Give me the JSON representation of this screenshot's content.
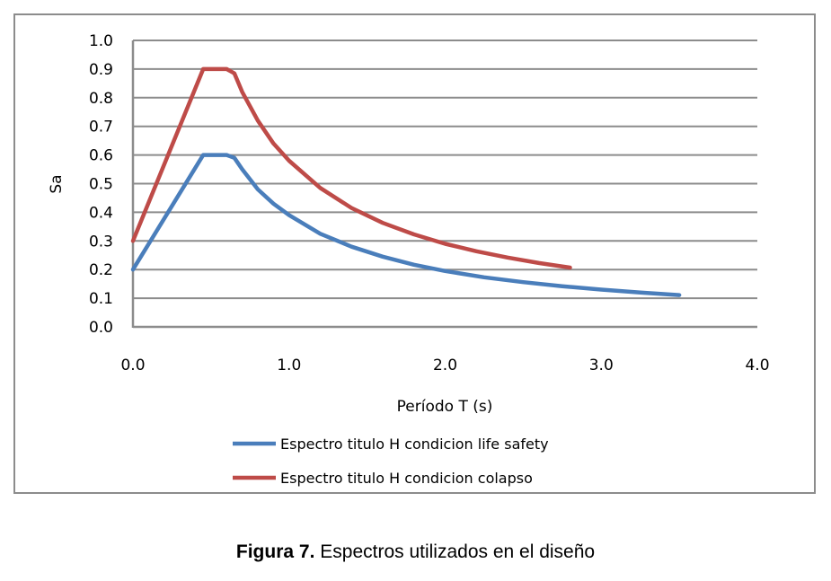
{
  "chart_data": {
    "type": "line",
    "title": "",
    "xlabel": "Período T (s)",
    "ylabel": "Sa",
    "xlim": [
      0,
      4
    ],
    "ylim": [
      0,
      1
    ],
    "x_ticks": [
      "0.0",
      "1.0",
      "2.0",
      "3.0",
      "4.0"
    ],
    "y_ticks": [
      "0.0",
      "0.1",
      "0.2",
      "0.3",
      "0.4",
      "0.5",
      "0.6",
      "0.7",
      "0.8",
      "0.9",
      "1.0"
    ],
    "grid": "horizontal",
    "legend_position": "bottom",
    "series": [
      {
        "name": "Espectro titulo H condicion life safety",
        "color": "#4a7ebb",
        "x": [
          0,
          0.45,
          0.6,
          0.65,
          0.7,
          0.8,
          0.9,
          1.0,
          1.2,
          1.4,
          1.6,
          1.8,
          2.0,
          2.25,
          2.5,
          2.75,
          3.0,
          3.25,
          3.5
        ],
        "y": [
          0.2,
          0.6,
          0.6,
          0.59,
          0.55,
          0.48,
          0.43,
          0.39,
          0.325,
          0.28,
          0.245,
          0.217,
          0.195,
          0.173,
          0.156,
          0.142,
          0.13,
          0.12,
          0.111
        ]
      },
      {
        "name": "Espectro titulo H condicion colapso",
        "color": "#be4b48",
        "x": [
          0,
          0.45,
          0.6,
          0.65,
          0.7,
          0.8,
          0.9,
          1.0,
          1.2,
          1.4,
          1.6,
          1.8,
          2.0,
          2.2,
          2.4,
          2.6,
          2.8
        ],
        "y": [
          0.3,
          0.9,
          0.9,
          0.885,
          0.82,
          0.72,
          0.64,
          0.58,
          0.485,
          0.415,
          0.363,
          0.323,
          0.29,
          0.264,
          0.242,
          0.223,
          0.207
        ]
      }
    ]
  },
  "caption": {
    "label": "Figura 7.",
    "text": " Espectros utilizados en el diseño"
  }
}
